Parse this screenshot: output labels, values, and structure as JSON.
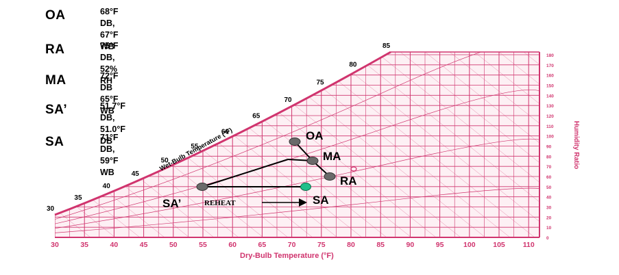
{
  "legend": [
    {
      "abbr": "OA",
      "line1": "68°F DB,",
      "line2": "67°F WB"
    },
    {
      "abbr": "RA",
      "line1": "75°F DB,",
      "line2": "52% RH"
    },
    {
      "abbr": "MA",
      "line1": "72°F DB",
      "line2": "65°F WB"
    },
    {
      "abbr": "SA’",
      "line1": "51.7°F DB,",
      "line2": "51.0°F DB"
    },
    {
      "abbr": "SA",
      "line1": "71°F DB,",
      "line2": "59°F WB"
    }
  ],
  "chart": {
    "x_axis_title": "Dry-Bulb Temperature (°F)",
    "y_axis_title": "Humidity Ratio",
    "saturation_label": "Wet-Bulb Temperature (°F)",
    "x_ticks": [
      "30",
      "35",
      "40",
      "45",
      "50",
      "55",
      "60",
      "65",
      "70",
      "75",
      "80",
      "85",
      "90",
      "95",
      "100",
      "105",
      "110"
    ],
    "y_ticks": [
      "180",
      "170",
      "160",
      "150",
      "140",
      "130",
      "120",
      "110",
      "100",
      "90",
      "80",
      "70",
      "60",
      "50",
      "40",
      "30",
      "20",
      "10",
      "0"
    ],
    "wb_ticks": [
      "30",
      "35",
      "40",
      "45",
      "50",
      "55",
      "60",
      "65",
      "70",
      "75",
      "80",
      "85"
    ],
    "grid_color": "#d0346e"
  },
  "points": {
    "oa": "OA",
    "ma": "MA",
    "ra": "RA",
    "sa_prime": "SA’",
    "sa": "SA",
    "reheat": "REHEAT"
  },
  "colors": {
    "point": "#6a6a6a",
    "sa_point": "#1fbf8a"
  }
}
